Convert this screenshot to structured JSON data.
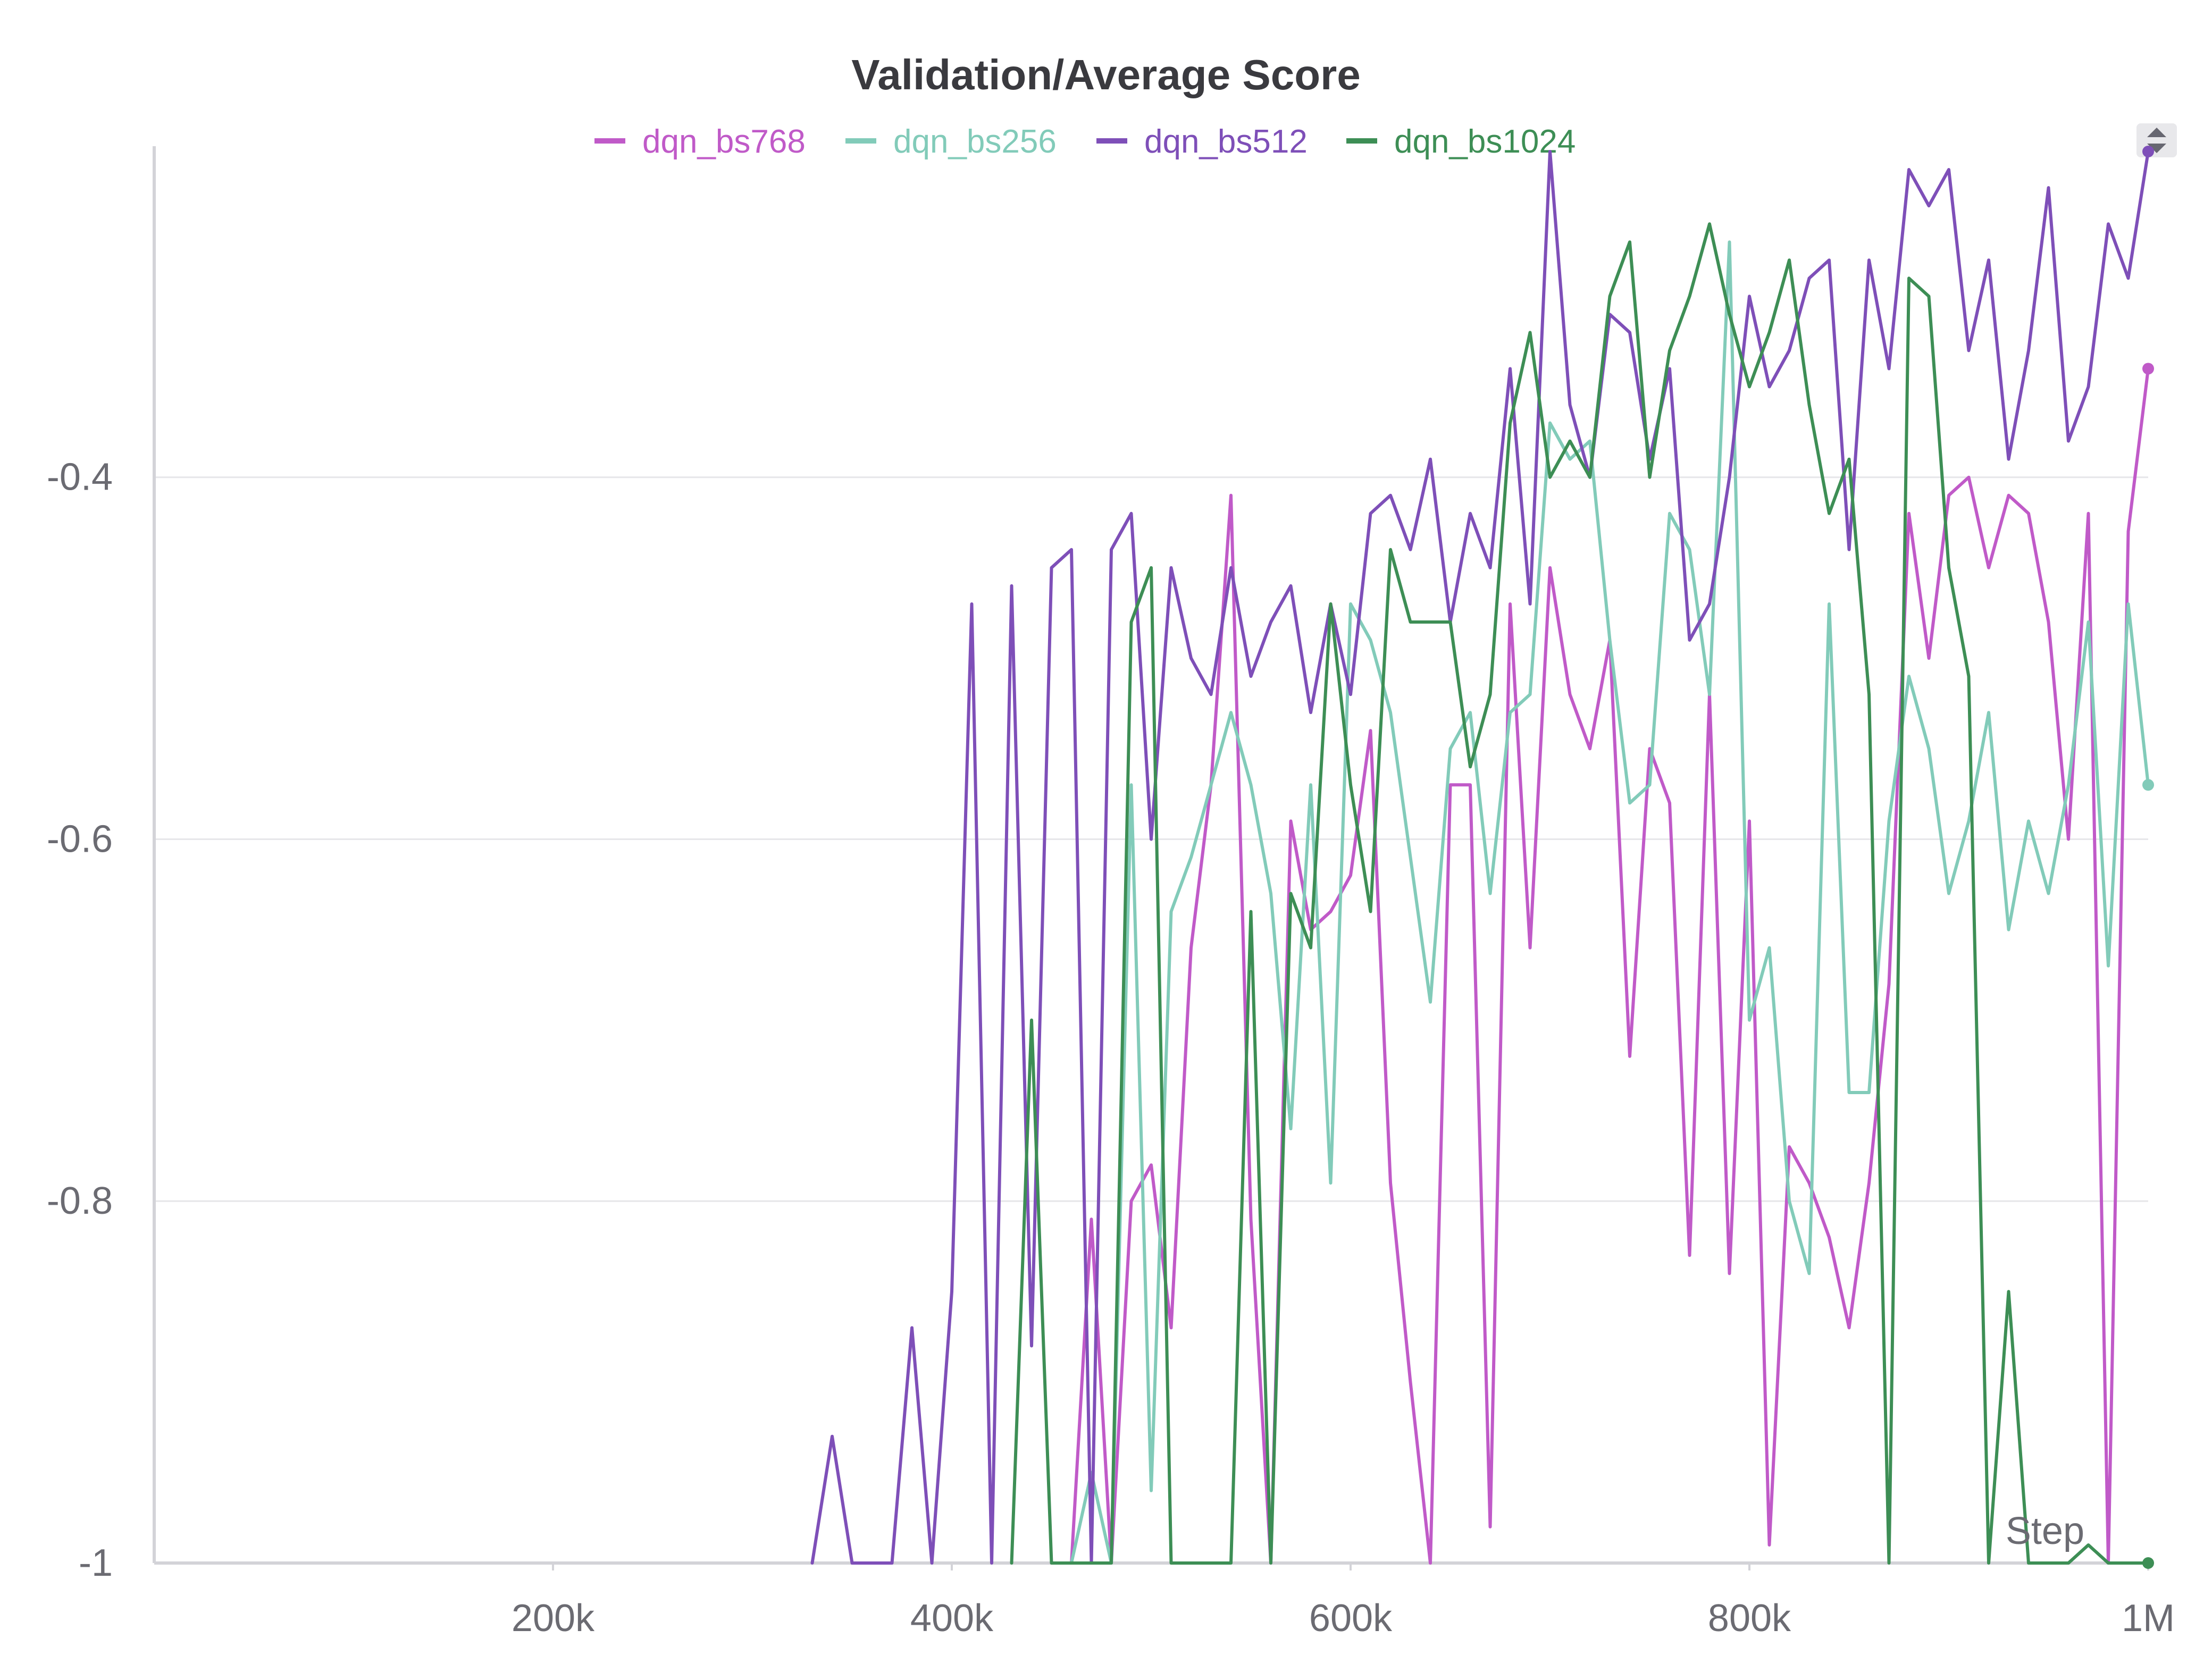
{
  "chart_data": {
    "type": "line",
    "title": "Validation/Average Score",
    "xlabel": "Step",
    "ylabel": "",
    "xlim": [
      0,
      1000000
    ],
    "ylim": [
      -1,
      -0.22
    ],
    "x_ticks": [
      200000,
      400000,
      600000,
      800000,
      1000000
    ],
    "x_tick_labels": [
      "200k",
      "400k",
      "600k",
      "800k",
      "1M"
    ],
    "y_ticks": [
      -1,
      -0.8,
      -0.6,
      -0.4
    ],
    "y_tick_labels": [
      "-1",
      "-0.8",
      "-0.6",
      "-0.4"
    ],
    "grid": true,
    "legend_position": "top-center",
    "series": [
      {
        "name": "dqn_bs768",
        "color": "#c05ac8",
        "points": [
          [
            450000,
            -1.0
          ],
          [
            460000,
            -1.0
          ],
          [
            470000,
            -0.81
          ],
          [
            480000,
            -1.0
          ],
          [
            490000,
            -0.8
          ],
          [
            500000,
            -0.78
          ],
          [
            510000,
            -0.87
          ],
          [
            520000,
            -0.66
          ],
          [
            530000,
            -0.57
          ],
          [
            540000,
            -0.41
          ],
          [
            550000,
            -0.81
          ],
          [
            560000,
            -1.0
          ],
          [
            570000,
            -0.59
          ],
          [
            580000,
            -0.65
          ],
          [
            590000,
            -0.64
          ],
          [
            600000,
            -0.62
          ],
          [
            610000,
            -0.54
          ],
          [
            620000,
            -0.79
          ],
          [
            630000,
            -0.9
          ],
          [
            640000,
            -1.0
          ],
          [
            650000,
            -0.57
          ],
          [
            660000,
            -0.57
          ],
          [
            670000,
            -0.98
          ],
          [
            680000,
            -0.47
          ],
          [
            690000,
            -0.66
          ],
          [
            700000,
            -0.45
          ],
          [
            710000,
            -0.52
          ],
          [
            720000,
            -0.55
          ],
          [
            730000,
            -0.49
          ],
          [
            740000,
            -0.72
          ],
          [
            750000,
            -0.55
          ],
          [
            760000,
            -0.58
          ],
          [
            770000,
            -0.83
          ],
          [
            780000,
            -0.52
          ],
          [
            790000,
            -0.84
          ],
          [
            800000,
            -0.59
          ],
          [
            810000,
            -0.99
          ],
          [
            820000,
            -0.77
          ],
          [
            830000,
            -0.79
          ],
          [
            840000,
            -0.82
          ],
          [
            850000,
            -0.87
          ],
          [
            860000,
            -0.79
          ],
          [
            870000,
            -0.68
          ],
          [
            880000,
            -0.42
          ],
          [
            890000,
            -0.5
          ],
          [
            900000,
            -0.41
          ],
          [
            910000,
            -0.4
          ],
          [
            920000,
            -0.45
          ],
          [
            930000,
            -0.41
          ],
          [
            940000,
            -0.42
          ],
          [
            950000,
            -0.48
          ],
          [
            960000,
            -0.6
          ],
          [
            970000,
            -0.42
          ],
          [
            980000,
            -1.0
          ],
          [
            990000,
            -0.43
          ],
          [
            1000000,
            -0.34
          ]
        ]
      },
      {
        "name": "dqn_bs256",
        "color": "#82cbb9",
        "points": [
          [
            460000,
            -1.0
          ],
          [
            470000,
            -0.95
          ],
          [
            480000,
            -1.0
          ],
          [
            490000,
            -0.57
          ],
          [
            500000,
            -0.96
          ],
          [
            510000,
            -0.64
          ],
          [
            520000,
            -0.61
          ],
          [
            530000,
            -0.57
          ],
          [
            540000,
            -0.53
          ],
          [
            550000,
            -0.57
          ],
          [
            560000,
            -0.63
          ],
          [
            570000,
            -0.76
          ],
          [
            580000,
            -0.57
          ],
          [
            590000,
            -0.79
          ],
          [
            600000,
            -0.47
          ],
          [
            610000,
            -0.49
          ],
          [
            620000,
            -0.53
          ],
          [
            630000,
            -0.61
          ],
          [
            640000,
            -0.69
          ],
          [
            650000,
            -0.55
          ],
          [
            660000,
            -0.53
          ],
          [
            670000,
            -0.63
          ],
          [
            680000,
            -0.53
          ],
          [
            690000,
            -0.52
          ],
          [
            700000,
            -0.37
          ],
          [
            710000,
            -0.39
          ],
          [
            720000,
            -0.38
          ],
          [
            730000,
            -0.49
          ],
          [
            740000,
            -0.58
          ],
          [
            750000,
            -0.57
          ],
          [
            760000,
            -0.42
          ],
          [
            770000,
            -0.44
          ],
          [
            780000,
            -0.52
          ],
          [
            790000,
            -0.27
          ],
          [
            800000,
            -0.7
          ],
          [
            810000,
            -0.66
          ],
          [
            820000,
            -0.8
          ],
          [
            830000,
            -0.84
          ],
          [
            840000,
            -0.47
          ],
          [
            850000,
            -0.74
          ],
          [
            860000,
            -0.74
          ],
          [
            870000,
            -0.59
          ],
          [
            880000,
            -0.51
          ],
          [
            890000,
            -0.55
          ],
          [
            900000,
            -0.63
          ],
          [
            910000,
            -0.59
          ],
          [
            920000,
            -0.53
          ],
          [
            930000,
            -0.65
          ],
          [
            940000,
            -0.59
          ],
          [
            950000,
            -0.63
          ],
          [
            960000,
            -0.57
          ],
          [
            970000,
            -0.48
          ],
          [
            980000,
            -0.67
          ],
          [
            990000,
            -0.47
          ],
          [
            1000000,
            -0.57
          ]
        ]
      },
      {
        "name": "dqn_bs512",
        "color": "#7e4fb8",
        "points": [
          [
            330000,
            -1.0
          ],
          [
            340000,
            -0.93
          ],
          [
            350000,
            -1.0
          ],
          [
            360000,
            -1.0
          ],
          [
            370000,
            -1.0
          ],
          [
            380000,
            -0.87
          ],
          [
            390000,
            -1.0
          ],
          [
            400000,
            -0.85
          ],
          [
            410000,
            -0.47
          ],
          [
            420000,
            -1.0
          ],
          [
            430000,
            -0.46
          ],
          [
            440000,
            -0.88
          ],
          [
            450000,
            -0.45
          ],
          [
            460000,
            -0.44
          ],
          [
            470000,
            -1.0
          ],
          [
            480000,
            -0.44
          ],
          [
            490000,
            -0.42
          ],
          [
            500000,
            -0.6
          ],
          [
            510000,
            -0.45
          ],
          [
            520000,
            -0.5
          ],
          [
            530000,
            -0.52
          ],
          [
            540000,
            -0.45
          ],
          [
            550000,
            -0.51
          ],
          [
            560000,
            -0.48
          ],
          [
            570000,
            -0.46
          ],
          [
            580000,
            -0.53
          ],
          [
            590000,
            -0.47
          ],
          [
            600000,
            -0.52
          ],
          [
            610000,
            -0.42
          ],
          [
            620000,
            -0.41
          ],
          [
            630000,
            -0.44
          ],
          [
            640000,
            -0.39
          ],
          [
            650000,
            -0.48
          ],
          [
            660000,
            -0.42
          ],
          [
            670000,
            -0.45
          ],
          [
            680000,
            -0.34
          ],
          [
            690000,
            -0.47
          ],
          [
            700000,
            -0.22
          ],
          [
            710000,
            -0.36
          ],
          [
            720000,
            -0.4
          ],
          [
            730000,
            -0.31
          ],
          [
            740000,
            -0.32
          ],
          [
            750000,
            -0.39
          ],
          [
            760000,
            -0.34
          ],
          [
            770000,
            -0.49
          ],
          [
            780000,
            -0.47
          ],
          [
            790000,
            -0.4
          ],
          [
            800000,
            -0.3
          ],
          [
            810000,
            -0.35
          ],
          [
            820000,
            -0.33
          ],
          [
            830000,
            -0.29
          ],
          [
            840000,
            -0.28
          ],
          [
            850000,
            -0.44
          ],
          [
            860000,
            -0.28
          ],
          [
            870000,
            -0.34
          ],
          [
            880000,
            -0.23
          ],
          [
            890000,
            -0.25
          ],
          [
            900000,
            -0.23
          ],
          [
            910000,
            -0.33
          ],
          [
            920000,
            -0.28
          ],
          [
            930000,
            -0.39
          ],
          [
            940000,
            -0.33
          ],
          [
            950000,
            -0.24
          ],
          [
            960000,
            -0.38
          ],
          [
            970000,
            -0.35
          ],
          [
            980000,
            -0.26
          ],
          [
            990000,
            -0.29
          ],
          [
            1000000,
            -0.22
          ]
        ]
      },
      {
        "name": "dqn_bs1024",
        "color": "#3d8e55",
        "points": [
          [
            430000,
            -1.0
          ],
          [
            440000,
            -0.7
          ],
          [
            450000,
            -1.0
          ],
          [
            460000,
            -1.0
          ],
          [
            470000,
            -1.0
          ],
          [
            480000,
            -1.0
          ],
          [
            490000,
            -0.48
          ],
          [
            500000,
            -0.45
          ],
          [
            510000,
            -1.0
          ],
          [
            520000,
            -1.0
          ],
          [
            530000,
            -1.0
          ],
          [
            540000,
            -1.0
          ],
          [
            550000,
            -0.64
          ],
          [
            560000,
            -1.0
          ],
          [
            570000,
            -0.63
          ],
          [
            580000,
            -0.66
          ],
          [
            590000,
            -0.47
          ],
          [
            600000,
            -0.57
          ],
          [
            610000,
            -0.64
          ],
          [
            620000,
            -0.44
          ],
          [
            630000,
            -0.48
          ],
          [
            640000,
            -0.48
          ],
          [
            650000,
            -0.48
          ],
          [
            660000,
            -0.56
          ],
          [
            670000,
            -0.52
          ],
          [
            680000,
            -0.37
          ],
          [
            690000,
            -0.32
          ],
          [
            700000,
            -0.4
          ],
          [
            710000,
            -0.38
          ],
          [
            720000,
            -0.4
          ],
          [
            730000,
            -0.3
          ],
          [
            740000,
            -0.27
          ],
          [
            750000,
            -0.4
          ],
          [
            760000,
            -0.33
          ],
          [
            770000,
            -0.3
          ],
          [
            780000,
            -0.26
          ],
          [
            790000,
            -0.31
          ],
          [
            800000,
            -0.35
          ],
          [
            810000,
            -0.32
          ],
          [
            820000,
            -0.28
          ],
          [
            830000,
            -0.36
          ],
          [
            840000,
            -0.42
          ],
          [
            850000,
            -0.39
          ],
          [
            860000,
            -0.52
          ],
          [
            870000,
            -1.0
          ],
          [
            880000,
            -0.29
          ],
          [
            890000,
            -0.3
          ],
          [
            900000,
            -0.45
          ],
          [
            910000,
            -0.51
          ],
          [
            920000,
            -1.0
          ],
          [
            930000,
            -0.85
          ],
          [
            940000,
            -1.0
          ],
          [
            950000,
            -1.0
          ],
          [
            960000,
            -1.0
          ],
          [
            970000,
            -0.99
          ],
          [
            980000,
            -1.0
          ],
          [
            990000,
            -1.0
          ],
          [
            1000000,
            -1.0
          ]
        ]
      }
    ]
  },
  "scroll_control": "sort-arrows-icon"
}
